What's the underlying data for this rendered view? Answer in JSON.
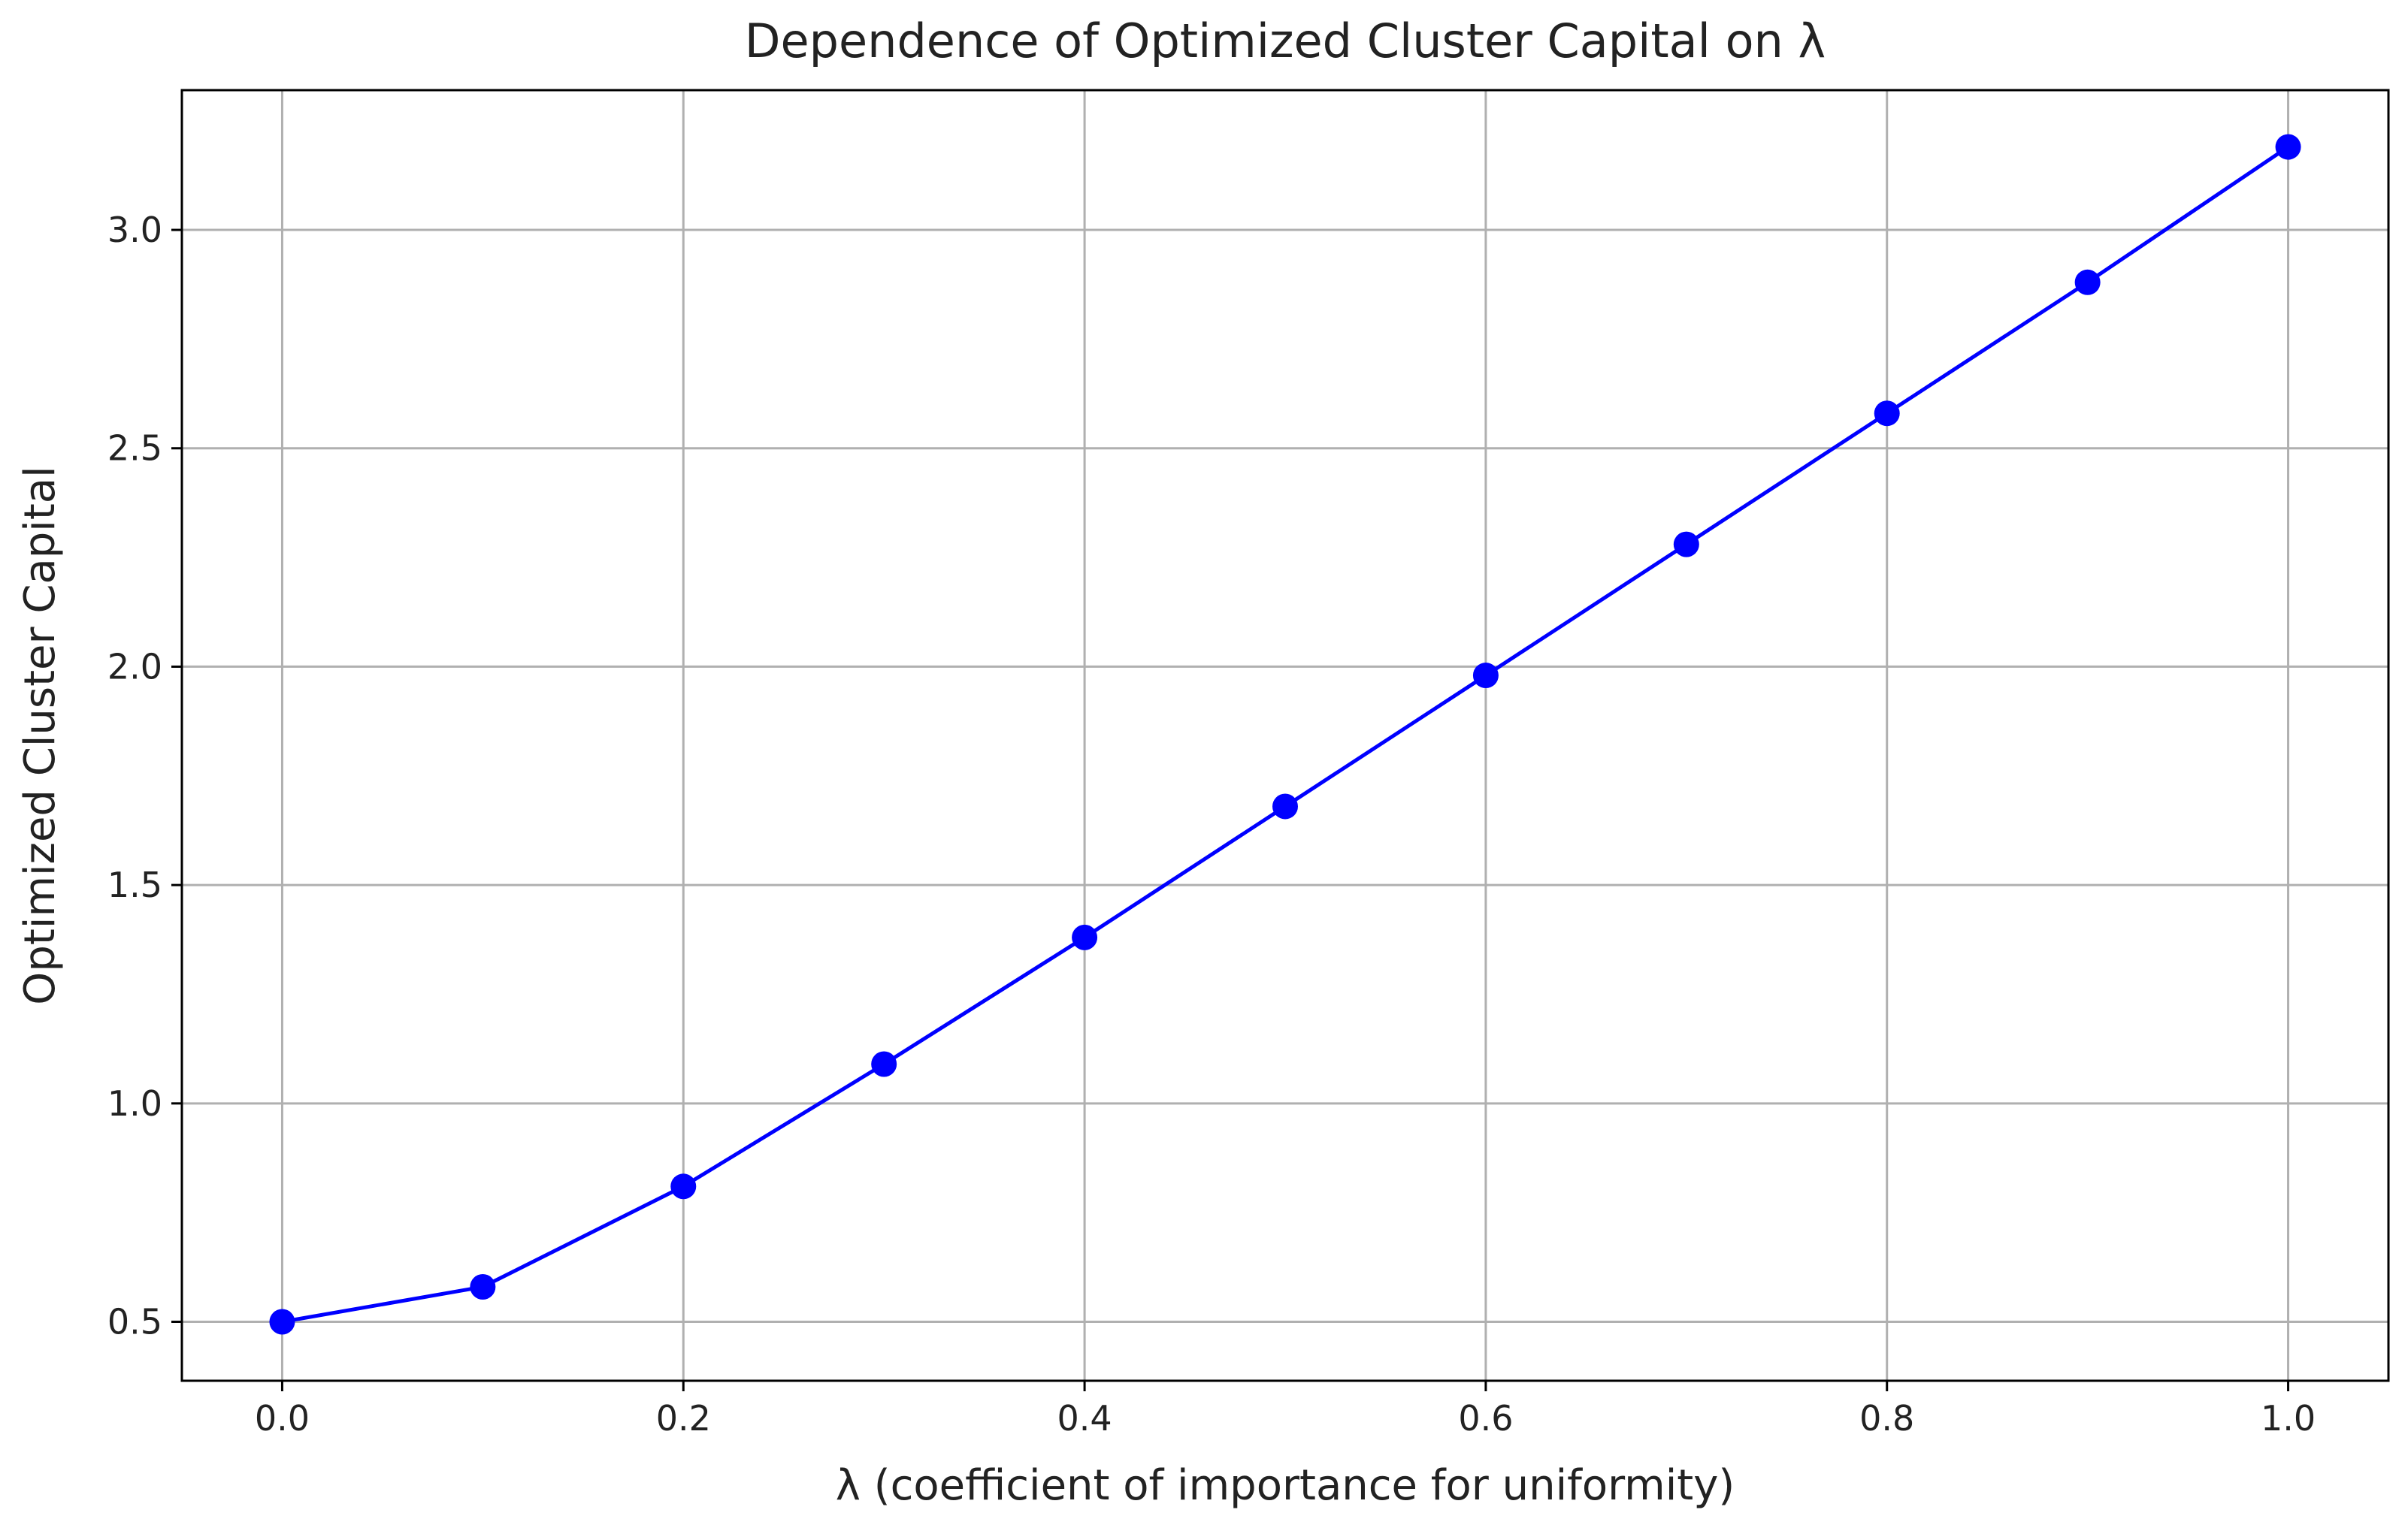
{
  "chart_data": {
    "type": "line",
    "title": "Dependence of Optimized Cluster Capital on λ",
    "xlabel": "λ (coefficient of importance for uniformity)",
    "ylabel": "Optimized Cluster Capital",
    "xlim": [
      -0.05,
      1.05
    ],
    "ylim": [
      0.365,
      3.32
    ],
    "x_ticks": [
      0.0,
      0.2,
      0.4,
      0.6,
      0.8,
      1.0
    ],
    "x_tick_labels": [
      "0.0",
      "0.2",
      "0.4",
      "0.6",
      "0.8",
      "1.0"
    ],
    "y_ticks": [
      0.5,
      1.0,
      1.5,
      2.0,
      2.5,
      3.0
    ],
    "y_tick_labels": [
      "0.5",
      "1.0",
      "1.5",
      "2.0",
      "2.5",
      "3.0"
    ],
    "grid": true,
    "series": [
      {
        "color": "#0000ff",
        "marker": "circle",
        "x": [
          0.0,
          0.1,
          0.2,
          0.3,
          0.4,
          0.5,
          0.6,
          0.7,
          0.8,
          0.9,
          1.0
        ],
        "y": [
          0.5,
          0.58,
          0.81,
          1.09,
          1.38,
          1.68,
          1.98,
          2.28,
          2.58,
          2.88,
          3.19
        ]
      }
    ],
    "colors": {
      "line": "#0000ff",
      "grid": "#b0b0b0",
      "axes": "#000000"
    }
  }
}
